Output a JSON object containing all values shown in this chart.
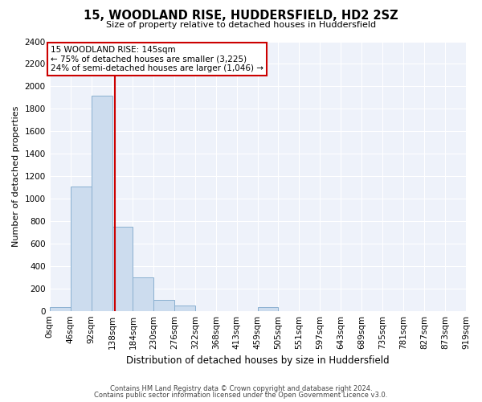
{
  "title": "15, WOODLAND RISE, HUDDERSFIELD, HD2 2SZ",
  "subtitle": "Size of property relative to detached houses in Huddersfield",
  "xlabel": "Distribution of detached houses by size in Huddersfield",
  "ylabel": "Number of detached properties",
  "bar_color": "#ccdcee",
  "bar_edge_color": "#8ab0d0",
  "bin_edges": [
    0,
    46,
    92,
    138,
    184,
    230,
    276,
    322,
    368,
    413,
    459,
    505,
    551,
    597,
    643,
    689,
    735,
    781,
    827,
    873,
    919
  ],
  "bin_labels": [
    "0sqm",
    "46sqm",
    "92sqm",
    "138sqm",
    "184sqm",
    "230sqm",
    "276sqm",
    "322sqm",
    "368sqm",
    "413sqm",
    "459sqm",
    "505sqm",
    "551sqm",
    "597sqm",
    "643sqm",
    "689sqm",
    "735sqm",
    "781sqm",
    "827sqm",
    "873sqm",
    "919sqm"
  ],
  "bar_heights": [
    35,
    1110,
    1920,
    750,
    300,
    100,
    45,
    0,
    0,
    0,
    30,
    0,
    0,
    0,
    0,
    0,
    0,
    0,
    0,
    0
  ],
  "ylim": [
    0,
    2400
  ],
  "yticks": [
    0,
    200,
    400,
    600,
    800,
    1000,
    1200,
    1400,
    1600,
    1800,
    2000,
    2200,
    2400
  ],
  "property_size": 145,
  "vline_color": "#cc0000",
  "annotation_box_color": "#cc0000",
  "annotation_title": "15 WOODLAND RISE: 145sqm",
  "annotation_line1": "← 75% of detached houses are smaller (3,225)",
  "annotation_line2": "24% of semi-detached houses are larger (1,046) →",
  "footer_line1": "Contains HM Land Registry data © Crown copyright and database right 2024.",
  "footer_line2": "Contains public sector information licensed under the Open Government Licence v3.0.",
  "background_color": "#ffffff",
  "plot_bg_color": "#eef2fa"
}
